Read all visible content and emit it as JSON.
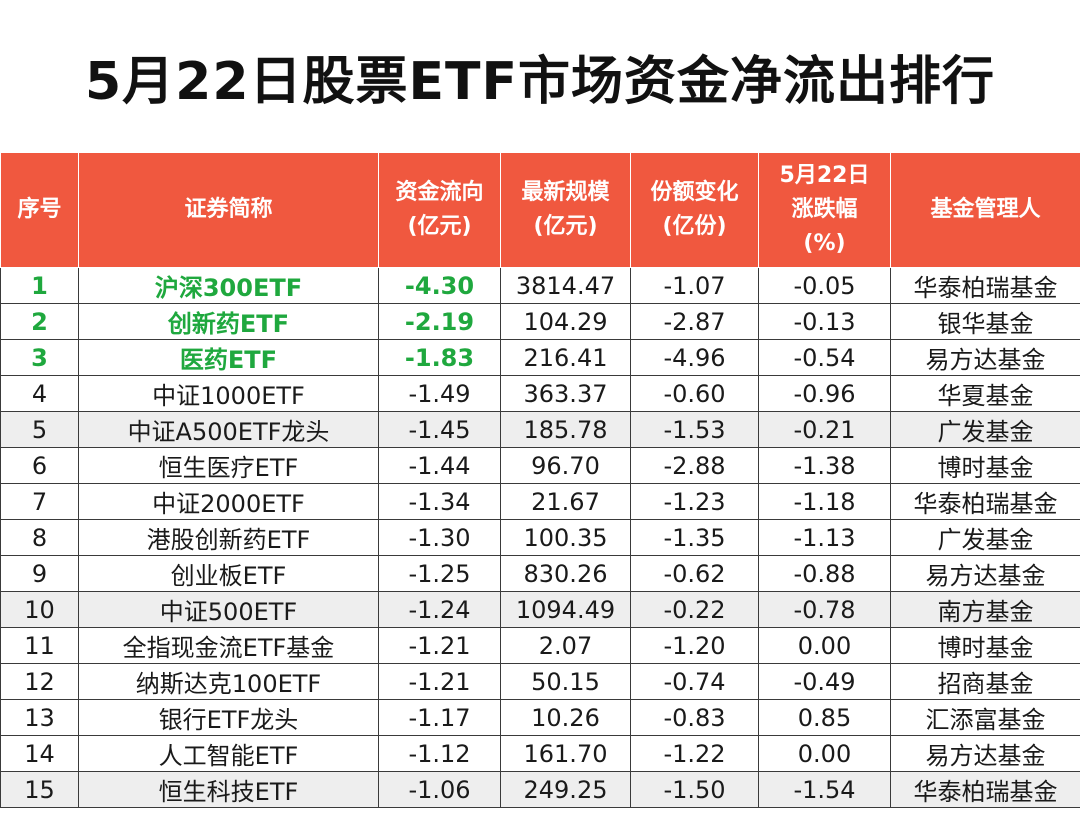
{
  "title": "5月22日股票ETF市场资金净流出排行",
  "colors": {
    "header_bg": "#f0583f",
    "header_text": "#ffffff",
    "highlight_green": "#1fa83e",
    "alt_row_bg": "#eeeeee"
  },
  "chart_data": {
    "type": "table",
    "title": "5月22日股票ETF市场资金净流出排行",
    "columns": [
      [
        "序号"
      ],
      [
        "证券简称"
      ],
      [
        "资金流向",
        "(亿元)"
      ],
      [
        "最新规模",
        "(亿元)"
      ],
      [
        "份额变化",
        "(亿份)"
      ],
      [
        "5月22日",
        "涨跌幅",
        "(%)"
      ],
      [
        "基金管理人"
      ]
    ],
    "rows": [
      [
        "1",
        "沪深300ETF",
        "-4.30",
        "3814.47",
        "-1.07",
        "-0.05",
        "华泰柏瑞基金"
      ],
      [
        "2",
        "创新药ETF",
        "-2.19",
        "104.29",
        "-2.87",
        "-0.13",
        "银华基金"
      ],
      [
        "3",
        "医药ETF",
        "-1.83",
        "216.41",
        "-4.96",
        "-0.54",
        "易方达基金"
      ],
      [
        "4",
        "中证1000ETF",
        "-1.49",
        "363.37",
        "-0.60",
        "-0.96",
        "华夏基金"
      ],
      [
        "5",
        "中证A500ETF龙头",
        "-1.45",
        "185.78",
        "-1.53",
        "-0.21",
        "广发基金"
      ],
      [
        "6",
        "恒生医疗ETF",
        "-1.44",
        "96.70",
        "-2.88",
        "-1.38",
        "博时基金"
      ],
      [
        "7",
        "中证2000ETF",
        "-1.34",
        "21.67",
        "-1.23",
        "-1.18",
        "华泰柏瑞基金"
      ],
      [
        "8",
        "港股创新药ETF",
        "-1.30",
        "100.35",
        "-1.35",
        "-1.13",
        "广发基金"
      ],
      [
        "9",
        "创业板ETF",
        "-1.25",
        "830.26",
        "-0.62",
        "-0.88",
        "易方达基金"
      ],
      [
        "10",
        "中证500ETF",
        "-1.24",
        "1094.49",
        "-0.22",
        "-0.78",
        "南方基金"
      ],
      [
        "11",
        "全指现金流ETF基金",
        "-1.21",
        "2.07",
        "-1.20",
        "0.00",
        "博时基金"
      ],
      [
        "12",
        "纳斯达克100ETF",
        "-1.21",
        "50.15",
        "-0.74",
        "-0.49",
        "招商基金"
      ],
      [
        "13",
        "银行ETF龙头",
        "-1.17",
        "10.26",
        "-0.83",
        "0.85",
        "汇添富基金"
      ],
      [
        "14",
        "人工智能ETF",
        "-1.12",
        "161.70",
        "-1.22",
        "0.00",
        "易方达基金"
      ],
      [
        "15",
        "恒生科技ETF",
        "-1.06",
        "249.25",
        "-1.50",
        "-1.54",
        "华泰柏瑞基金"
      ]
    ],
    "highlighted_rows": [
      1,
      2,
      3
    ],
    "grey_rows": [
      5,
      10,
      15
    ]
  }
}
